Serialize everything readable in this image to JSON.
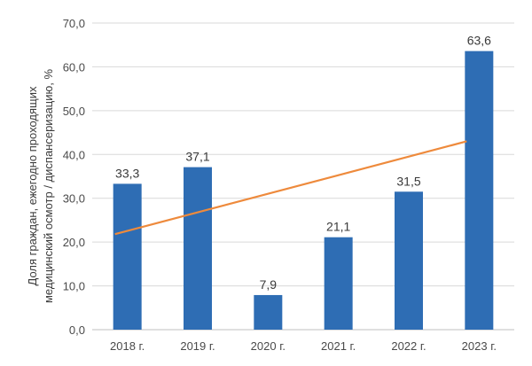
{
  "chart_data": {
    "type": "bar",
    "categories": [
      "2018 г.",
      "2019 г.",
      "2020 г.",
      "2021 г.",
      "2022 г.",
      "2023 г."
    ],
    "values": [
      33.3,
      37.1,
      7.9,
      21.1,
      31.5,
      63.6
    ],
    "data_labels": [
      "33,3",
      "37,1",
      "7,9",
      "21,1",
      "31,5",
      "63,6"
    ],
    "y_ticks": [
      "0,0",
      "10,0",
      "20,0",
      "30,0",
      "40,0",
      "50,0",
      "60,0",
      "70,0"
    ],
    "ylim": [
      0,
      70
    ],
    "ylabel_lines": [
      "Доля граждан, ежегодно проходящих",
      "медицинский осмотр / диспансеризацию, %"
    ],
    "trendline": {
      "start": 21.8,
      "end": 43.0
    },
    "grid": true,
    "colors": {
      "bar": "#2e6db4",
      "trend": "#ee8a3c"
    }
  }
}
